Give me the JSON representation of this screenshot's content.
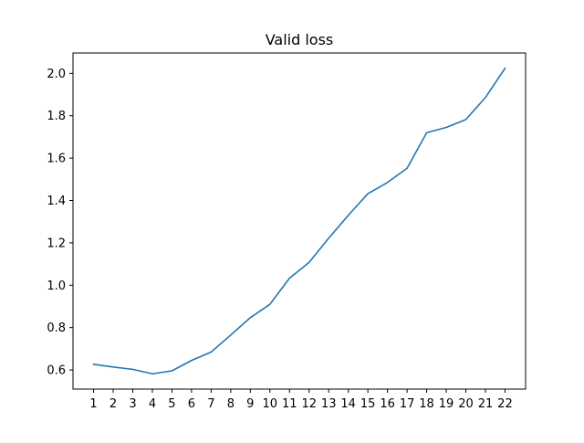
{
  "chart_data": {
    "type": "line",
    "title": "Valid loss",
    "xlabel": "",
    "ylabel": "",
    "x": [
      1,
      2,
      3,
      4,
      5,
      6,
      7,
      8,
      9,
      10,
      11,
      12,
      13,
      14,
      15,
      16,
      17,
      18,
      19,
      20,
      21,
      22
    ],
    "series": [
      {
        "values": [
          0.627,
          0.614,
          0.603,
          0.582,
          0.596,
          0.645,
          0.685,
          0.765,
          0.847,
          0.91,
          1.033,
          1.108,
          1.222,
          1.33,
          1.432,
          1.485,
          1.552,
          1.72,
          1.745,
          1.782,
          1.886,
          2.024
        ],
        "color": "#1f77b4"
      }
    ],
    "x_ticks": [
      "1",
      "2",
      "3",
      "4",
      "5",
      "6",
      "7",
      "8",
      "9",
      "10",
      "11",
      "12",
      "13",
      "14",
      "15",
      "16",
      "17",
      "18",
      "19",
      "20",
      "21",
      "22"
    ],
    "y_ticks": [
      "0.6",
      "0.8",
      "1.0",
      "1.2",
      "1.4",
      "1.6",
      "1.8",
      "2.0"
    ],
    "xlim": [
      -0.05,
      23.05
    ],
    "ylim": [
      0.5098,
      2.0962
    ],
    "grid": false,
    "legend": "none"
  }
}
